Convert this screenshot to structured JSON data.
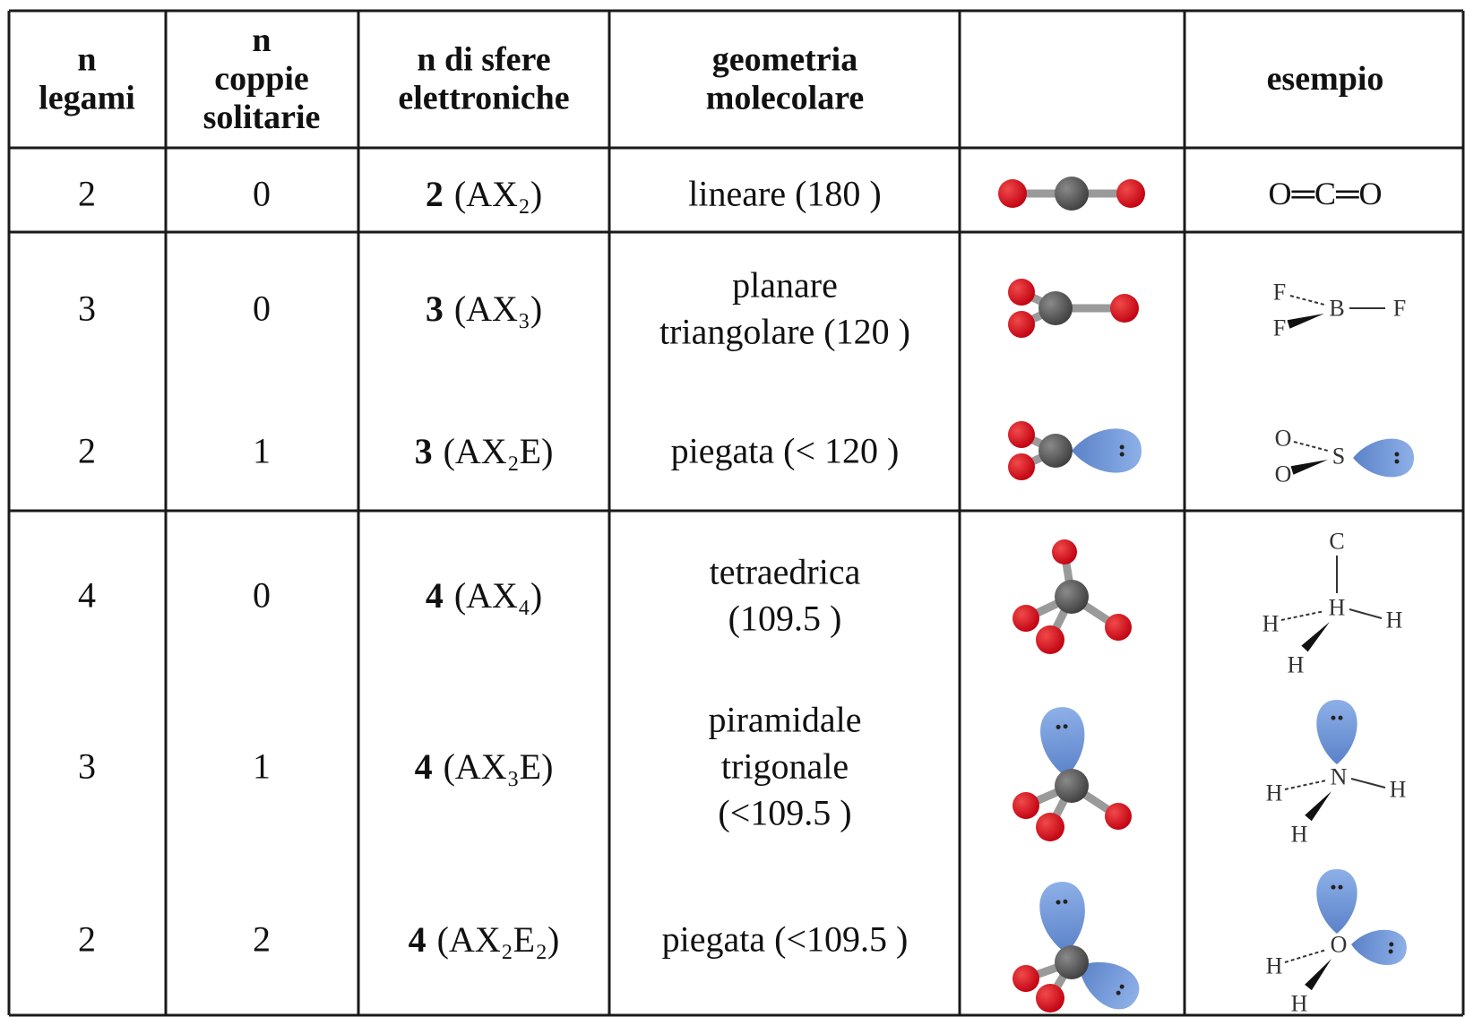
{
  "table": {
    "header": {
      "bonds": [
        "n",
        "legami"
      ],
      "lone_pairs": [
        "n",
        "coppie",
        "solitarie"
      ],
      "spheres": [
        "n   di sfere",
        "elettroniche"
      ],
      "geometry": [
        "geometria",
        "molecolare"
      ],
      "example": [
        "esempio"
      ]
    },
    "rows": [
      {
        "bonds": 2,
        "lone_pairs": 0,
        "spheres": "2",
        "formula": "(AX₂)",
        "geometry": [
          "lineare (180  )"
        ],
        "example": {
          "text": "O═C═O"
        }
      },
      {
        "bonds": 3,
        "lone_pairs": 0,
        "spheres": "3",
        "formula": "(AX₃)",
        "geometry": [
          "planare",
          "triangolare (120  )"
        ],
        "example": {
          "atoms": [
            "F",
            "F",
            "B",
            "F"
          ]
        }
      },
      {
        "bonds": 2,
        "lone_pairs": 1,
        "spheres": "3",
        "formula": "(AX₂E)",
        "geometry": [
          "piegata (< 120  )"
        ],
        "example": {
          "atoms": [
            "O",
            "O",
            "S"
          ]
        }
      },
      {
        "bonds": 4,
        "lone_pairs": 0,
        "spheres": "4",
        "formula": "(AX₄)",
        "geometry": [
          "tetraedrica",
          "(109.5  )"
        ],
        "example": {
          "atoms": [
            "H",
            "C",
            "H",
            "H",
            "H"
          ]
        }
      },
      {
        "bonds": 3,
        "lone_pairs": 1,
        "spheres": "4",
        "formula": "(AX₃E)",
        "geometry": [
          "piramidale",
          "trigonale",
          "(<109.5  )"
        ],
        "example": {
          "atoms": [
            "N",
            "H",
            "H",
            "H"
          ]
        }
      },
      {
        "bonds": 2,
        "lone_pairs": 2,
        "spheres": "4",
        "formula": "(AX₂E₂)",
        "geometry": [
          "piegata (<109.5  )"
        ],
        "example": {
          "atoms": [
            "O",
            "H",
            "H"
          ]
        }
      }
    ]
  }
}
